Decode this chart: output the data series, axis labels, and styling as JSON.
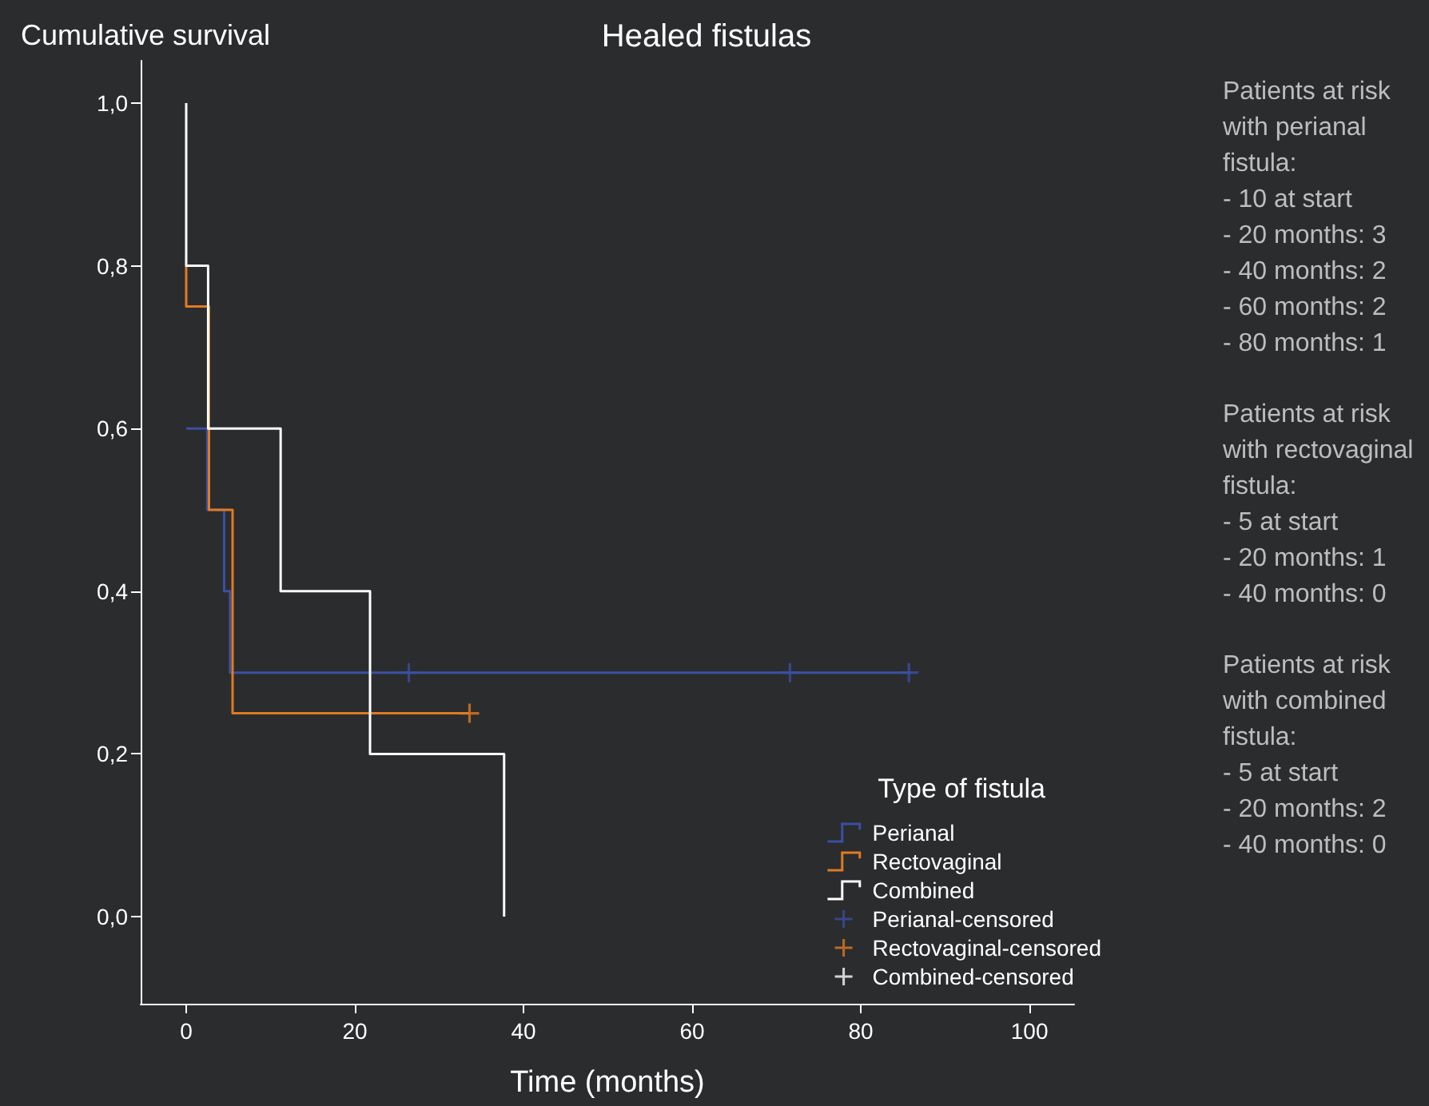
{
  "chart_data": {
    "type": "step",
    "title": "Healed fistulas",
    "xlabel": "Time (months)",
    "ylabel": "Cumulative survival",
    "legend_title": "Type of fistula",
    "xlim": [
      -5.4,
      105.3
    ],
    "xticks": [
      0,
      20,
      40,
      60,
      80,
      100
    ],
    "ylim": [
      -0.107,
      1.052
    ],
    "yticks": [
      {
        "value": 0,
        "label": "0,0"
      },
      {
        "value": 0.2,
        "label": "0,2"
      },
      {
        "value": 0.4,
        "label": "0,4"
      },
      {
        "value": 0.6,
        "label": "0,6"
      },
      {
        "value": 0.8,
        "label": "0,8"
      },
      {
        "value": 1,
        "label": "1,0"
      }
    ],
    "grid": false,
    "legend": "bottom right",
    "series": [
      {
        "name": "Perianal",
        "color": "#3b4fa3",
        "x": [
          0,
          2.5,
          4.5,
          5.2,
          86
        ],
        "values": [
          0.6,
          0.5,
          0.4,
          0.3,
          0.3
        ]
      },
      {
        "name": "Rectovaginal",
        "color": "#e07b22",
        "x": [
          0,
          0,
          2.7,
          5.5,
          33.6
        ],
        "values": [
          0.8,
          0.75,
          0.5,
          0.25,
          0.25
        ]
      },
      {
        "name": "Combined",
        "color": "#ffffff",
        "x": [
          0,
          0,
          2.6,
          11.2,
          21.8,
          37.7
        ],
        "values": [
          1.0,
          0.8,
          0.6,
          0.4,
          0.2,
          0.0
        ]
      },
      {
        "name": "Perianal-censored",
        "type": "scatter",
        "marker": "cross",
        "color": "#3b4fa3",
        "x": [
          26.4,
          71.6,
          85.7
        ],
        "values": [
          0.3,
          0.3,
          0.3
        ]
      },
      {
        "name": "Rectovaginal-censored",
        "type": "scatter",
        "marker": "cross",
        "color": "#e07b22",
        "x": [
          33.6
        ],
        "values": [
          0.25
        ]
      },
      {
        "name": "Combined-censored",
        "type": "scatter",
        "marker": "cross",
        "color": "#ffffff"
      }
    ],
    "annotations": [
      "Patients at risk\nwith perianal\nfistula:\n- 10 at start\n- 20 months: 3\n- 40 months: 2\n- 60 months: 2\n- 80 months: 1",
      "Patients at risk\nwith rectovaginal\nfistula:\n- 5 at start\n- 20 months: 1\n- 40 months: 0",
      "Patients at risk\nwith combined\nfistula:\n- 5 at start\n- 20 months: 2\n- 40 months: 0"
    ]
  }
}
